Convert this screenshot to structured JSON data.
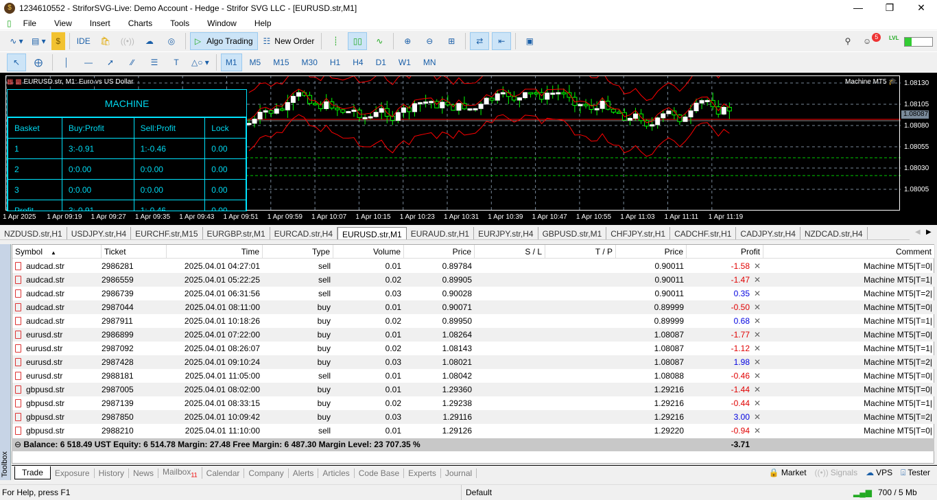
{
  "window": {
    "title": "1234610552 - StriforSVG-Live: Demo Account - Hedge - Strifor SVG LLC - [EURUSD.str,M1]"
  },
  "menu": [
    "File",
    "View",
    "Insert",
    "Charts",
    "Tools",
    "Window",
    "Help"
  ],
  "toolbar": {
    "ide": "IDE",
    "algo_trading": "Algo Trading",
    "new_order": "New Order",
    "notifications_badge": "5",
    "lvl": "LVL"
  },
  "timeframes": [
    "M1",
    "M5",
    "M15",
    "M30",
    "H1",
    "H4",
    "D1",
    "W1",
    "MN"
  ],
  "active_timeframe": "M1",
  "chart": {
    "header": "EURUSD.str, M1:  Euro vs US Dollar",
    "ea_label": "Machine MT5",
    "price_ticks": [
      "1.08130",
      "1.08105",
      "1.08080",
      "1.08055",
      "1.08030",
      "1.08005"
    ],
    "current_price": "1.08087",
    "time_ticks": [
      "1 Apr 2025",
      "1 Apr 09:19",
      "1 Apr 09:27",
      "1 Apr 09:35",
      "1 Apr 09:43",
      "1 Apr 09:51",
      "1 Apr 09:59",
      "1 Apr 10:07",
      "1 Apr 10:15",
      "1 Apr 10:23",
      "1 Apr 10:31",
      "1 Apr 10:39",
      "1 Apr 10:47",
      "1 Apr 10:55",
      "1 Apr 11:03",
      "1 Apr 11:11",
      "1 Apr 11:19"
    ],
    "panel": {
      "title": "MACHINE",
      "headers": [
        "Basket",
        "Buy:Profit",
        "Sell:Profit",
        "Lock"
      ],
      "rows": [
        [
          "1",
          "3:-0.91",
          "1:-0.46",
          "0.00"
        ],
        [
          "2",
          "0:0.00",
          "0:0.00",
          "0.00"
        ],
        [
          "3",
          "0:0.00",
          "0:0.00",
          "0.00"
        ],
        [
          "Profit",
          "3:-0.91",
          "1:-0.46",
          "0.00"
        ]
      ]
    }
  },
  "chart_tabs": [
    "NZDUSD.str,H1",
    "USDJPY.str,H4",
    "EURCHF.str,M15",
    "EURGBP.str,M1",
    "EURCAD.str,H4",
    "EURUSD.str,M1",
    "EURAUD.str,H1",
    "EURJPY.str,H4",
    "GBPUSD.str,M1",
    "CHFJPY.str,H1",
    "CADCHF.str,H1",
    "CADJPY.str,H4",
    "NZDCAD.str,H4"
  ],
  "active_chart_tab": "EURUSD.str,M1",
  "trade": {
    "columns": [
      "Symbol",
      "Ticket",
      "Time",
      "Type",
      "Volume",
      "Price",
      "S / L",
      "T / P",
      "Price",
      "Profit",
      "Comment"
    ],
    "rows": [
      [
        "audcad.str",
        "2986281",
        "2025.04.01 04:27:01",
        "sell",
        "0.01",
        "0.89784",
        "",
        "",
        "0.90011",
        "-1.58",
        "Machine MT5|T=0|"
      ],
      [
        "audcad.str",
        "2986559",
        "2025.04.01 05:22:25",
        "sell",
        "0.02",
        "0.89905",
        "",
        "",
        "0.90011",
        "-1.47",
        "Machine MT5|T=1|"
      ],
      [
        "audcad.str",
        "2986739",
        "2025.04.01 06:31:56",
        "sell",
        "0.03",
        "0.90028",
        "",
        "",
        "0.90011",
        "0.35",
        "Machine MT5|T=2|"
      ],
      [
        "audcad.str",
        "2987044",
        "2025.04.01 08:11:00",
        "buy",
        "0.01",
        "0.90071",
        "",
        "",
        "0.89999",
        "-0.50",
        "Machine MT5|T=0|"
      ],
      [
        "audcad.str",
        "2987911",
        "2025.04.01 10:18:26",
        "buy",
        "0.02",
        "0.89950",
        "",
        "",
        "0.89999",
        "0.68",
        "Machine MT5|T=1|"
      ],
      [
        "eurusd.str",
        "2986899",
        "2025.04.01 07:22:00",
        "buy",
        "0.01",
        "1.08264",
        "",
        "",
        "1.08087",
        "-1.77",
        "Machine MT5|T=0|"
      ],
      [
        "eurusd.str",
        "2987092",
        "2025.04.01 08:26:07",
        "buy",
        "0.02",
        "1.08143",
        "",
        "",
        "1.08087",
        "-1.12",
        "Machine MT5|T=1|"
      ],
      [
        "eurusd.str",
        "2987428",
        "2025.04.01 09:10:24",
        "buy",
        "0.03",
        "1.08021",
        "",
        "",
        "1.08087",
        "1.98",
        "Machine MT5|T=2|"
      ],
      [
        "eurusd.str",
        "2988181",
        "2025.04.01 11:05:00",
        "sell",
        "0.01",
        "1.08042",
        "",
        "",
        "1.08088",
        "-0.46",
        "Machine MT5|T=0|"
      ],
      [
        "gbpusd.str",
        "2987005",
        "2025.04.01 08:02:00",
        "buy",
        "0.01",
        "1.29360",
        "",
        "",
        "1.29216",
        "-1.44",
        "Machine MT5|T=0|"
      ],
      [
        "gbpusd.str",
        "2987139",
        "2025.04.01 08:33:15",
        "buy",
        "0.02",
        "1.29238",
        "",
        "",
        "1.29216",
        "-0.44",
        "Machine MT5|T=1|"
      ],
      [
        "gbpusd.str",
        "2987850",
        "2025.04.01 10:09:42",
        "buy",
        "0.03",
        "1.29116",
        "",
        "",
        "1.29216",
        "3.00",
        "Machine MT5|T=2|"
      ],
      [
        "gbpusd.str",
        "2988210",
        "2025.04.01 11:10:00",
        "sell",
        "0.01",
        "1.29126",
        "",
        "",
        "1.29220",
        "-0.94",
        "Machine MT5|T=0|"
      ]
    ],
    "summary": "Balance: 6 518.49 UST  Equity: 6 514.78  Margin: 27.48  Free Margin: 6 487.30  Margin Level: 23 707.35 %",
    "total_profit": "-3.71"
  },
  "toolbox": {
    "label": "Toolbox",
    "tabs": [
      "Trade",
      "Exposure",
      "History",
      "News",
      "Mailbox",
      "Calendar",
      "Company",
      "Alerts",
      "Articles",
      "Code Base",
      "Experts",
      "Journal"
    ],
    "mailbox_badge": "11",
    "active": "Trade",
    "right": [
      "Market",
      "Signals",
      "VPS",
      "Tester"
    ]
  },
  "status": {
    "help": "For Help, press F1",
    "profile": "Default",
    "traffic": "700 / 5 Mb"
  },
  "colors": {
    "bull": "#00ff00",
    "bands": "#ff0000",
    "panel": "#00e5ff",
    "loss": "#e00000",
    "gain": "#0000e0"
  }
}
